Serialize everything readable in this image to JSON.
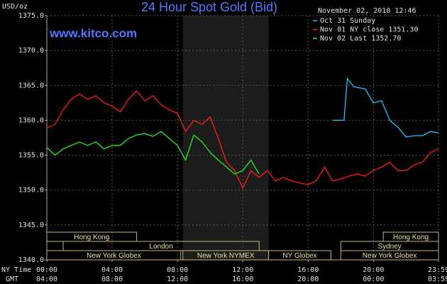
{
  "chart_data": {
    "type": "line",
    "title": "24 Hour Spot Gold (Bid)",
    "source": "www.kitco.com",
    "timestamp": "November 02, 2010 12:46",
    "y_label": "USD/oz",
    "x_labels": [
      "NY Time",
      "GMT"
    ],
    "background": "#000000",
    "grid": true,
    "legend": "top-right",
    "xlim": [
      0,
      23.983
    ],
    "ylim": [
      1340,
      1375
    ],
    "yticks": [
      {
        "value": 1340,
        "label": "1340.0"
      },
      {
        "value": 1345,
        "label": "1345.0"
      },
      {
        "value": 1350,
        "label": "1350.0"
      },
      {
        "value": 1355,
        "label": "1355.0"
      },
      {
        "value": 1360,
        "label": "1360.0"
      },
      {
        "value": 1365,
        "label": "1365.0"
      },
      {
        "value": 1370,
        "label": "1370.0"
      },
      {
        "value": 1375,
        "label": "1375.0"
      }
    ],
    "xticks": [
      {
        "value": 0,
        "label": "00:00"
      },
      {
        "value": 4,
        "label": "04:00"
      },
      {
        "value": 8,
        "label": "08:00"
      },
      {
        "value": 12,
        "label": "12:00"
      },
      {
        "value": 16,
        "label": "16:00"
      },
      {
        "value": 20,
        "label": "20:00"
      },
      {
        "value": 23.983,
        "label": "23:59"
      }
    ],
    "gmt_ticks": [
      {
        "value": 0,
        "label": "04:00"
      },
      {
        "value": 4,
        "label": "08:00"
      },
      {
        "value": 8,
        "label": "12:00"
      },
      {
        "value": 12,
        "label": "16:00"
      },
      {
        "value": 16,
        "label": "20:00"
      },
      {
        "value": 20,
        "label": "00:00"
      },
      {
        "value": 23.983,
        "label": "03:59"
      }
    ],
    "shaded_range": [
      8.33,
      13.58
    ],
    "sessions": [
      [
        {
          "name": "Hong Kong",
          "start": 0,
          "end": 5.5
        },
        {
          "name": "Hong Kong",
          "start": 20.6,
          "end": 23.983
        }
      ],
      [
        {
          "name": "London",
          "start": 1.0,
          "end": 13.0
        },
        {
          "name": "Sydney",
          "start": 18.0,
          "end": 23.983
        }
      ],
      [
        {
          "name": "New York Globex",
          "start": 0,
          "end": 8.2
        },
        {
          "name": "New York NYMEX",
          "start": 8.33,
          "end": 13.58
        },
        {
          "name": "NY Globex",
          "start": 13.58,
          "end": 17.4
        },
        {
          "name": "New York Globex",
          "start": 18.0,
          "end": 23.983
        }
      ]
    ],
    "series": [
      {
        "name": "Oct 31 Sunday",
        "color": "#22c4ff",
        "x": [
          17.5,
          18.0,
          18.2,
          18.4,
          18.8,
          19.5,
          20.0,
          20.5,
          21.0,
          21.5,
          22.0,
          22.5,
          23.0,
          23.5,
          23.983
        ],
        "values": [
          1360,
          1360,
          1360,
          1366,
          1364.8,
          1364.5,
          1362.5,
          1362.8,
          1360,
          1359,
          1357.6,
          1357.8,
          1357.8,
          1358.4,
          1358.2
        ]
      },
      {
        "name": "Nov 01 NY close 1351.30",
        "color": "#ff1a1a",
        "x": [
          0,
          0.5,
          1,
          1.5,
          2,
          2.5,
          3,
          3.5,
          4,
          4.5,
          5,
          5.5,
          6,
          6.5,
          7,
          7.5,
          8,
          8.5,
          9,
          9.5,
          10,
          10.5,
          11,
          11.5,
          12,
          12.5,
          13,
          13.5,
          14,
          14.5,
          15,
          15.5,
          16,
          16.5,
          17,
          17.5,
          18,
          18.5,
          19,
          19.5,
          20,
          20.5,
          21,
          21.5,
          22,
          22.5,
          23,
          23.5,
          23.983
        ],
        "values": [
          1358.9,
          1359.4,
          1361.5,
          1363,
          1363.8,
          1363,
          1363.5,
          1362.5,
          1362,
          1361.2,
          1363,
          1364.2,
          1362.8,
          1363.5,
          1362.2,
          1361.5,
          1361,
          1358.4,
          1360,
          1359.4,
          1360.5,
          1357.4,
          1354,
          1352.8,
          1350.3,
          1352.8,
          1351.8,
          1352.8,
          1351.3,
          1351.8,
          1351.3,
          1351,
          1350.8,
          1351.3,
          1353.3,
          1351.3,
          1351.6,
          1352,
          1352.3,
          1352,
          1352.8,
          1353.3,
          1354,
          1352.8,
          1352.8,
          1353.6,
          1354,
          1355.4,
          1355.9
        ]
      },
      {
        "name": "Nov 02 Last 1352.70",
        "color": "#22ee22",
        "x": [
          0,
          0.5,
          1,
          1.5,
          2,
          2.5,
          3,
          3.5,
          4,
          4.5,
          5,
          5.5,
          6,
          6.5,
          7,
          7.5,
          8,
          8.5,
          9,
          9.5,
          10,
          10.5,
          11,
          11.5,
          12,
          12.5,
          13
        ],
        "values": [
          1356.1,
          1355,
          1355.9,
          1356.4,
          1356.9,
          1356.4,
          1356.9,
          1355.9,
          1356.4,
          1356.4,
          1357.4,
          1357.9,
          1358.1,
          1357.7,
          1358.4,
          1357.4,
          1356.4,
          1354.3,
          1357.9,
          1356.9,
          1355.4,
          1354.3,
          1353.3,
          1352.3,
          1352.8,
          1354.3,
          1352.3
        ]
      }
    ]
  }
}
